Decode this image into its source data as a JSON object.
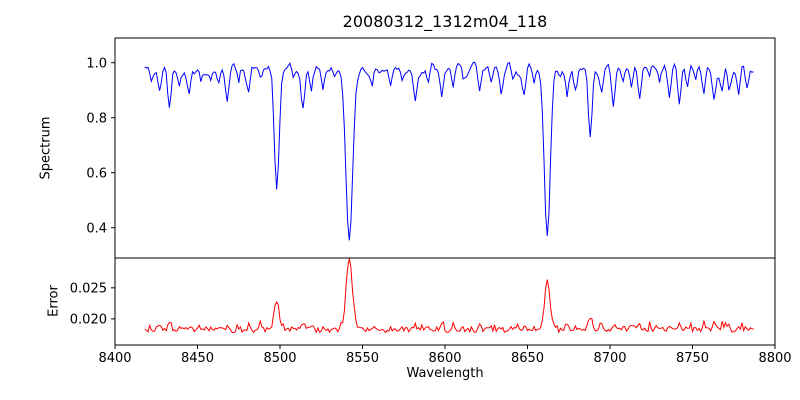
{
  "figure": {
    "background": "#ffffff",
    "axis_color": "#000000"
  },
  "chart_data": {
    "type": "line",
    "title": "20080312_1312m04_118",
    "xlabel": "Wavelength",
    "xlim": [
      8400,
      8800
    ],
    "xticks": [
      8400,
      8450,
      8500,
      8550,
      8600,
      8650,
      8700,
      8750,
      8800
    ],
    "xtick_labels": [
      "8400",
      "8450",
      "8500",
      "8550",
      "8600",
      "8650",
      "8700",
      "8750",
      "8800"
    ],
    "x_data_range": [
      8418,
      8787
    ],
    "sample_step": 1.0,
    "noise_seed": 42,
    "grid": false,
    "legend": "none",
    "panels": [
      {
        "name": "spectrum",
        "ylabel": "Spectrum",
        "line_color": "#0000ff",
        "ylim": [
          0.29,
          1.09
        ],
        "yticks": [
          0.4,
          0.6,
          0.8,
          1.0
        ],
        "ytick_labels": [
          "0.4",
          "0.6",
          "0.8",
          "1.0"
        ],
        "continuum": 0.978,
        "noise_amplitude": 0.035,
        "absorption_lines": [
          {
            "c": 8498,
            "d": 0.435,
            "w": 1.5
          },
          {
            "c": 8542,
            "d": 0.645,
            "w": 2.0
          },
          {
            "c": 8662,
            "d": 0.595,
            "w": 1.8
          },
          {
            "c": 8688,
            "d": 0.26,
            "w": 1.2
          },
          {
            "c": 8422,
            "d": 0.05,
            "w": 0.9
          },
          {
            "c": 8427,
            "d": 0.09,
            "w": 1.0
          },
          {
            "c": 8433,
            "d": 0.13,
            "w": 1.1
          },
          {
            "c": 8439,
            "d": 0.06,
            "w": 0.9
          },
          {
            "c": 8445,
            "d": 0.08,
            "w": 0.9
          },
          {
            "c": 8452,
            "d": 0.05,
            "w": 0.9
          },
          {
            "c": 8458,
            "d": 0.04,
            "w": 0.8
          },
          {
            "c": 8463,
            "d": 0.06,
            "w": 0.9
          },
          {
            "c": 8468,
            "d": 0.1,
            "w": 1.0
          },
          {
            "c": 8475,
            "d": 0.05,
            "w": 0.9
          },
          {
            "c": 8481,
            "d": 0.07,
            "w": 0.9
          },
          {
            "c": 8488,
            "d": 0.04,
            "w": 0.8
          },
          {
            "c": 8508,
            "d": 0.05,
            "w": 0.9
          },
          {
            "c": 8514,
            "d": 0.15,
            "w": 1.1
          },
          {
            "c": 8519,
            "d": 0.08,
            "w": 0.9
          },
          {
            "c": 8526,
            "d": 0.06,
            "w": 0.9
          },
          {
            "c": 8533,
            "d": 0.04,
            "w": 0.8
          },
          {
            "c": 8556,
            "d": 0.07,
            "w": 0.9
          },
          {
            "c": 8567,
            "d": 0.06,
            "w": 0.9
          },
          {
            "c": 8574,
            "d": 0.04,
            "w": 0.8
          },
          {
            "c": 8582,
            "d": 0.11,
            "w": 1.0
          },
          {
            "c": 8590,
            "d": 0.05,
            "w": 0.8
          },
          {
            "c": 8598,
            "d": 0.12,
            "w": 1.0
          },
          {
            "c": 8605,
            "d": 0.06,
            "w": 0.9
          },
          {
            "c": 8611,
            "d": 0.04,
            "w": 0.8
          },
          {
            "c": 8621,
            "d": 0.1,
            "w": 1.0
          },
          {
            "c": 8628,
            "d": 0.06,
            "w": 0.9
          },
          {
            "c": 8634,
            "d": 0.07,
            "w": 0.9
          },
          {
            "c": 8641,
            "d": 0.05,
            "w": 0.8
          },
          {
            "c": 8648,
            "d": 0.09,
            "w": 1.0
          },
          {
            "c": 8654,
            "d": 0.05,
            "w": 0.8
          },
          {
            "c": 8674,
            "d": 0.1,
            "w": 1.0
          },
          {
            "c": 8679,
            "d": 0.07,
            "w": 0.9
          },
          {
            "c": 8695,
            "d": 0.06,
            "w": 0.9
          },
          {
            "c": 8702,
            "d": 0.12,
            "w": 1.0
          },
          {
            "c": 8708,
            "d": 0.06,
            "w": 0.9
          },
          {
            "c": 8713,
            "d": 0.09,
            "w": 0.9
          },
          {
            "c": 8718,
            "d": 0.11,
            "w": 1.0
          },
          {
            "c": 8724,
            "d": 0.05,
            "w": 0.8
          },
          {
            "c": 8730,
            "d": 0.06,
            "w": 0.9
          },
          {
            "c": 8736,
            "d": 0.1,
            "w": 1.0
          },
          {
            "c": 8742,
            "d": 0.12,
            "w": 1.0
          },
          {
            "c": 8747,
            "d": 0.07,
            "w": 0.9
          },
          {
            "c": 8752,
            "d": 0.05,
            "w": 0.8
          },
          {
            "c": 8757,
            "d": 0.09,
            "w": 0.9
          },
          {
            "c": 8763,
            "d": 0.12,
            "w": 1.0
          },
          {
            "c": 8768,
            "d": 0.06,
            "w": 0.9
          },
          {
            "c": 8772,
            "d": 0.08,
            "w": 0.9
          },
          {
            "c": 8778,
            "d": 0.1,
            "w": 1.0
          },
          {
            "c": 8783,
            "d": 0.06,
            "w": 0.9
          }
        ]
      },
      {
        "name": "error",
        "ylabel": "Error",
        "line_color": "#ff0000",
        "ylim": [
          0.0158,
          0.0298
        ],
        "yticks": [
          0.02,
          0.025
        ],
        "ytick_labels": [
          "0.020",
          "0.025"
        ],
        "baseline": 0.0182,
        "noise_amplitude": 0.0004,
        "spike_amplitude": 0.006,
        "minor_peak_factor": 0.007,
        "peaks": [
          {
            "c": 8498,
            "h": 0.0048,
            "w": 1.5
          },
          {
            "c": 8542,
            "h": 0.0112,
            "w": 1.9
          },
          {
            "c": 8662,
            "h": 0.0078,
            "w": 1.7
          },
          {
            "c": 8688,
            "h": 0.002,
            "w": 1.2
          }
        ]
      }
    ]
  }
}
